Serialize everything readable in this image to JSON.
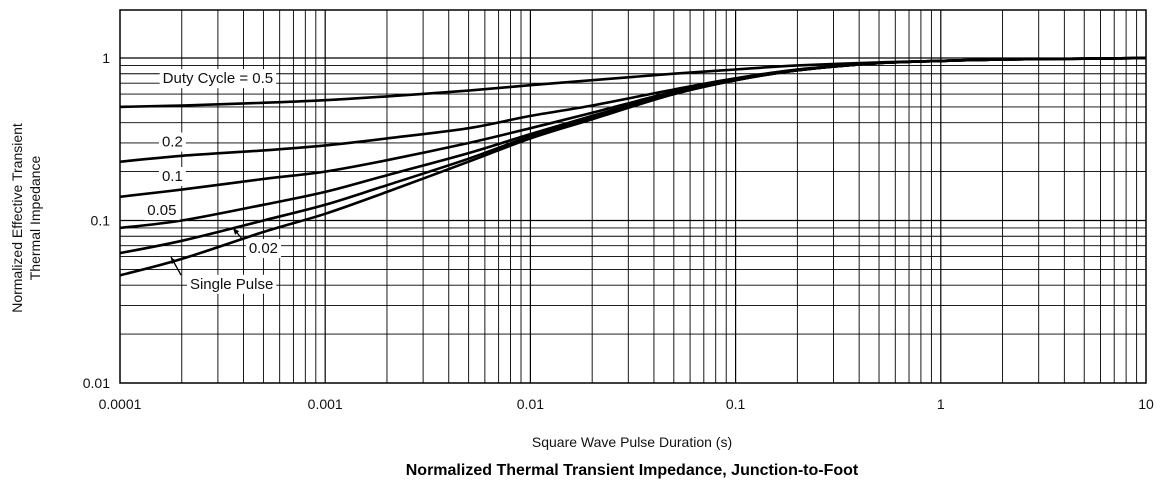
{
  "chart_data": {
    "type": "line",
    "title": "Normalized Thermal Transient Impedance, Junction-to-Foot",
    "xlabel": "Square Wave Pulse Duration (s)",
    "ylabel": [
      "Normalized Effective Transient",
      "Thermal Impedance"
    ],
    "xscale": "log",
    "yscale": "log",
    "xlim": [
      0.0001,
      10
    ],
    "ylim": [
      0.01,
      1.2
    ],
    "grid": true,
    "x_ticks": [
      "0.0001",
      "0.001",
      "0.01",
      "0.1",
      "1",
      "10"
    ],
    "y_ticks": [
      "0.01",
      "0.1",
      "1"
    ],
    "x": [
      0.0001,
      0.0002,
      0.0005,
      0.001,
      0.002,
      0.005,
      0.01,
      0.02,
      0.05,
      0.1,
      0.2,
      0.5,
      1,
      2,
      5,
      10
    ],
    "series": [
      {
        "name": "Duty Cycle = 0.5",
        "values": [
          0.5,
          0.51,
          0.53,
          0.55,
          0.58,
          0.63,
          0.68,
          0.73,
          0.8,
          0.85,
          0.9,
          0.94,
          0.96,
          0.98,
          0.99,
          1.0
        ]
      },
      {
        "name": "0.2",
        "values": [
          0.23,
          0.25,
          0.27,
          0.29,
          0.32,
          0.37,
          0.44,
          0.51,
          0.64,
          0.75,
          0.85,
          0.93,
          0.96,
          0.98,
          0.99,
          1.0
        ]
      },
      {
        "name": "0.1",
        "values": [
          0.14,
          0.155,
          0.18,
          0.2,
          0.235,
          0.3,
          0.37,
          0.46,
          0.62,
          0.74,
          0.84,
          0.93,
          0.96,
          0.98,
          0.99,
          1.0
        ]
      },
      {
        "name": "0.05",
        "values": [
          0.09,
          0.1,
          0.125,
          0.15,
          0.19,
          0.26,
          0.34,
          0.44,
          0.61,
          0.73,
          0.84,
          0.93,
          0.96,
          0.98,
          0.99,
          1.0
        ]
      },
      {
        "name": "0.02",
        "values": [
          0.063,
          0.075,
          0.1,
          0.125,
          0.165,
          0.24,
          0.33,
          0.43,
          0.6,
          0.73,
          0.84,
          0.93,
          0.96,
          0.98,
          0.99,
          1.0
        ]
      },
      {
        "name": "Single Pulse",
        "values": [
          0.046,
          0.058,
          0.085,
          0.11,
          0.15,
          0.23,
          0.32,
          0.42,
          0.6,
          0.73,
          0.84,
          0.93,
          0.96,
          0.98,
          0.99,
          1.0
        ]
      }
    ],
    "annotations": [
      {
        "text": "Duty Cycle = 0.5",
        "x": 0.0003,
        "y": 0.7
      },
      {
        "text": "0.2",
        "x": 0.00018,
        "y": 0.285
      },
      {
        "text": "0.1",
        "x": 0.00018,
        "y": 0.175
      },
      {
        "text": "0.05",
        "x": 0.00016,
        "y": 0.108
      },
      {
        "text": "0.02",
        "x": 0.0005,
        "y": 0.063
      },
      {
        "text": "Single Pulse",
        "x": 0.00035,
        "y": 0.038
      }
    ]
  }
}
